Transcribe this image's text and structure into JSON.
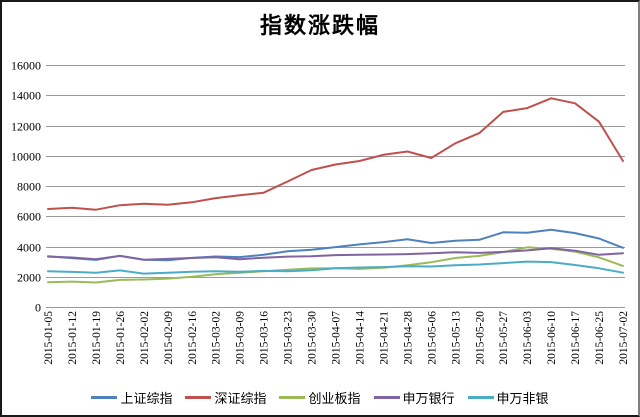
{
  "chart_data": {
    "type": "line",
    "title": "指数涨跌幅",
    "categories": [
      "2015-01-05",
      "2015-01-12",
      "2015-01-19",
      "2015-01-26",
      "2015-02-02",
      "2015-02-09",
      "2015-02-16",
      "2015-03-02",
      "2015-03-09",
      "2015-03-16",
      "2015-03-23",
      "2015-03-30",
      "2015-04-07",
      "2015-04-14",
      "2015-04-21",
      "2015-04-28",
      "2015-05-06",
      "2015-05-13",
      "2015-05-20",
      "2015-05-27",
      "2015-06-03",
      "2015-06-10",
      "2015-06-17",
      "2015-06-25",
      "2015-07-02"
    ],
    "series": [
      {
        "name": "上证综指",
        "color": "#4F81BD",
        "values": [
          3350,
          3230,
          3116,
          3383,
          3128,
          3095,
          3246,
          3336,
          3302,
          3449,
          3691,
          3786,
          3961,
          4136,
          4293,
          4476,
          4229,
          4375,
          4446,
          4941,
          4910,
          5113,
          4887,
          4528,
          3912
        ]
      },
      {
        "name": "深证综指",
        "color": "#C0504D",
        "values": [
          6480,
          6560,
          6430,
          6730,
          6830,
          6760,
          6920,
          7200,
          7390,
          7560,
          8300,
          9060,
          9420,
          9650,
          10060,
          10280,
          9850,
          10820,
          11500,
          12900,
          13150,
          13800,
          13470,
          12250,
          9650
        ]
      },
      {
        "name": "创业板指",
        "color": "#9BBB59",
        "values": [
          1640,
          1680,
          1620,
          1790,
          1820,
          1880,
          2000,
          2160,
          2260,
          2360,
          2460,
          2550,
          2560,
          2520,
          2600,
          2760,
          2960,
          3240,
          3380,
          3630,
          3950,
          3850,
          3660,
          3280,
          2720
        ]
      },
      {
        "name": "申万银行",
        "color": "#8064A2",
        "values": [
          3330,
          3270,
          3160,
          3380,
          3130,
          3180,
          3240,
          3290,
          3160,
          3260,
          3330,
          3360,
          3430,
          3450,
          3470,
          3500,
          3550,
          3620,
          3580,
          3640,
          3740,
          3880,
          3720,
          3450,
          3560
        ]
      },
      {
        "name": "申万非银",
        "color": "#4BACC6",
        "values": [
          2360,
          2320,
          2260,
          2420,
          2210,
          2260,
          2330,
          2360,
          2330,
          2390,
          2360,
          2430,
          2560,
          2610,
          2640,
          2700,
          2680,
          2760,
          2810,
          2900,
          3000,
          2970,
          2780,
          2560,
          2270
        ]
      }
    ],
    "xlabel": "",
    "ylabel": "",
    "ylim": [
      0,
      16000
    ],
    "y_ticks": [
      0,
      2000,
      4000,
      6000,
      8000,
      10000,
      12000,
      14000,
      16000
    ],
    "grid": true,
    "grid_color": "#9a9a9a",
    "legend_position": "bottom"
  }
}
